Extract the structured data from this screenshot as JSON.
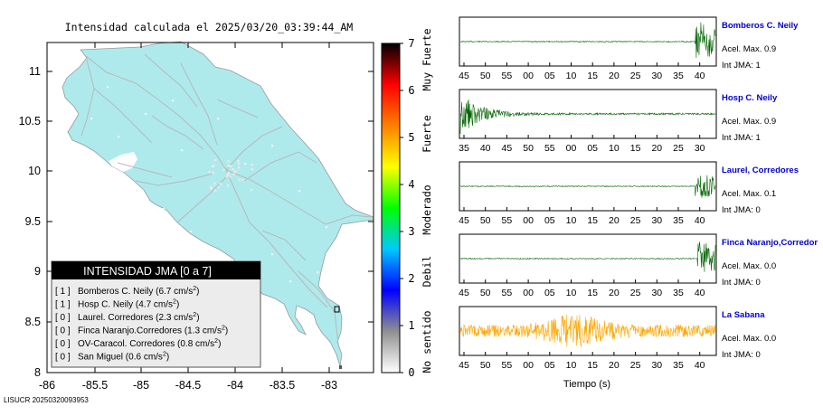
{
  "map": {
    "title": "Intensidad calculada el 2025/03/20_03:39:44_AM",
    "x_ticks": [
      "-86",
      "-85.5",
      "-85",
      "-84.5",
      "-84",
      "-83.5",
      "-83"
    ],
    "y_ticks": [
      "11",
      "10.5",
      "10",
      "9.5",
      "9",
      "8.5",
      "8"
    ],
    "footer": "LISUCR 20250320093953",
    "land_color": "#aeeaec",
    "road_color": "#b8b8b8"
  },
  "legend": {
    "title": "INTENSIDAD JMA [0 a 7]",
    "rows": [
      {
        "jma": "[ 1 ]",
        "text": "Bomberos C. Neily (6.7 cm/s",
        "exp": "2",
        "close": ")"
      },
      {
        "jma": "[ 1 ]",
        "text": "Hosp C. Neily (4.7 cm/s",
        "exp": "2",
        "close": ")"
      },
      {
        "jma": "[ 0 ]",
        "text": "Laurel. Corredores (2.3 cm/s",
        "exp": "2",
        "close": ")"
      },
      {
        "jma": "[ 0 ]",
        "text": "Finca Naranjo.Corredores (1.3 cm/s",
        "exp": "2",
        "close": ")"
      },
      {
        "jma": "[ 0 ]",
        "text": "OV-Caracol. Corredores (0.8 cm/s",
        "exp": "2",
        "close": ")"
      },
      {
        "jma": "[ 0 ]",
        "text": "San Miguel (0.6 cm/s",
        "exp": "2",
        "close": ")"
      }
    ]
  },
  "colorbar": {
    "ticks": [
      "0",
      "1",
      "2",
      "3",
      "4",
      "5",
      "6",
      "7"
    ],
    "labels": [
      "No sentido",
      "Debil",
      "Moderado",
      "Fuerte",
      "Muy Fuerte"
    ],
    "colors": [
      "#ffffff",
      "#909090",
      "#0000ff",
      "#00c8ff",
      "#00ff00",
      "#ffff00",
      "#ff8000",
      "#ff0000",
      "#000000"
    ]
  },
  "chart_data": {
    "type": "line",
    "xlabel": "Tiempo (s)",
    "stations": [
      {
        "name": "Bomberos C. Neily",
        "acel_label": "Acel. Max. 0.9",
        "jma_label": "Int JMA: 1",
        "color": "#006400",
        "ticks": [
          "45",
          "50",
          "55",
          "00",
          "05",
          "10",
          "15",
          "20",
          "25",
          "30",
          "35",
          "40"
        ],
        "onset": 0.92,
        "decay": 0.6,
        "amplitude": 0.9,
        "noise": 0.02
      },
      {
        "name": "Hosp C. Neily",
        "acel_label": "Acel. Max. 0.9",
        "jma_label": "Int JMA: 1",
        "color": "#006400",
        "ticks": [
          "35",
          "40",
          "45",
          "50",
          "55",
          "00",
          "05",
          "10",
          "15",
          "20",
          "25",
          "30"
        ],
        "onset": 0.0,
        "decay": 0.12,
        "amplitude": 0.9,
        "noise": 0.04
      },
      {
        "name": "Laurel, Corredores",
        "acel_label": "Acel. Max. 0.1",
        "jma_label": "Int JMA: 0",
        "color": "#006400",
        "ticks": [
          "45",
          "50",
          "55",
          "00",
          "05",
          "10",
          "15",
          "20",
          "25",
          "30",
          "35",
          "40"
        ],
        "onset": 0.92,
        "decay": 0.6,
        "amplitude": 0.55,
        "noise": 0.02
      },
      {
        "name": "Finca Naranjo,Corredor",
        "acel_label": "Acel. Max. 0.0",
        "jma_label": "Int JMA: 0",
        "color": "#006400",
        "ticks": [
          "45",
          "50",
          "55",
          "00",
          "05",
          "10",
          "15",
          "20",
          "25",
          "30",
          "35",
          "40"
        ],
        "onset": 0.93,
        "decay": 0.6,
        "amplitude": 0.8,
        "noise": 0.02
      },
      {
        "name": "La Sabana",
        "acel_label": "Acel. Max. 0.0",
        "jma_label": "Int JMA: 0",
        "color": "#ffa500",
        "ticks": [
          "45",
          "50",
          "55",
          "00",
          "05",
          "10",
          "15",
          "20",
          "25",
          "30",
          "35",
          "40"
        ],
        "onset": -1,
        "decay": 1,
        "amplitude": 0.55,
        "noise": 0.55
      }
    ]
  }
}
